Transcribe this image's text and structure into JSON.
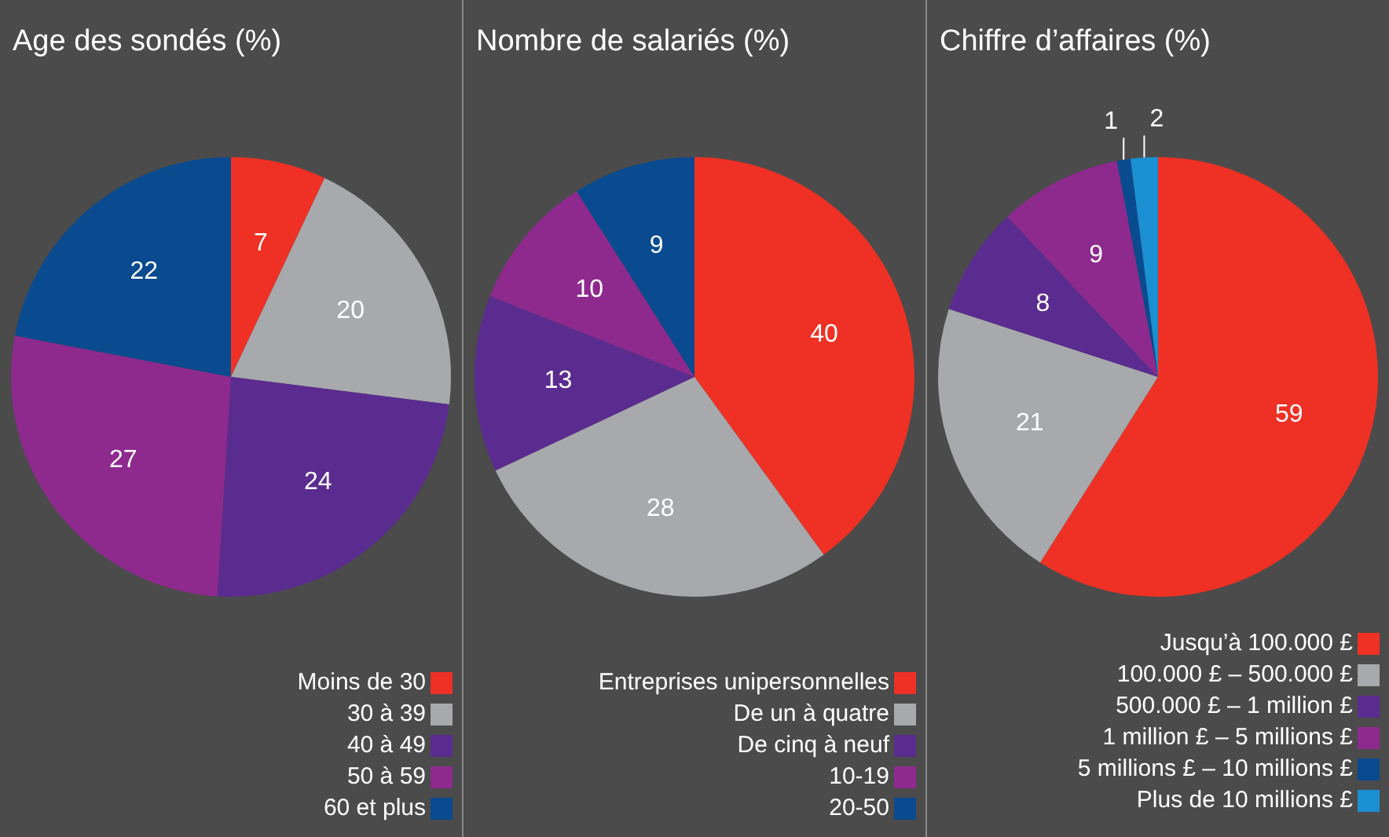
{
  "chart_data": [
    {
      "type": "pie",
      "title": "Age des sondés (%)",
      "categories": [
        "Moins de 30",
        "30 à 39",
        "40 à 49",
        "50 à 59",
        "60 et plus"
      ],
      "values": [
        7,
        20,
        24,
        27,
        22
      ],
      "colors": [
        "#ee3124",
        "#a7a9ac",
        "#5b2c8f",
        "#8e2a8e",
        "#0a4a8f"
      ],
      "data_labels": true,
      "legend": "bottom right"
    },
    {
      "type": "pie",
      "title": "Nombre de salariés (%)",
      "categories": [
        "Entreprises unipersonnelles",
        "De un à quatre",
        "De cinq à neuf",
        "10-19",
        "20-50"
      ],
      "values": [
        40,
        28,
        13,
        10,
        9
      ],
      "colors": [
        "#ee3124",
        "#a7a9ac",
        "#5b2c8f",
        "#8e2a8e",
        "#0a4a8f"
      ],
      "data_labels": true,
      "legend": "bottom right"
    },
    {
      "type": "pie",
      "title": "Chiffre d’affaires (%)",
      "categories": [
        "Jusqu’à 100.000 £",
        "100.000 £ – 500.000 £",
        "500.000 £ – 1 million £",
        "1 million £ – 5 millions £",
        "5 millions £ – 10 millions £",
        "Plus de 10 millions £"
      ],
      "values": [
        59,
        21,
        8,
        9,
        1,
        2
      ],
      "colors": [
        "#ee3124",
        "#a7a9ac",
        "#5b2c8f",
        "#8e2a8e",
        "#0a4a8f",
        "#1a8fd1"
      ],
      "data_labels": true,
      "legend": "bottom right"
    }
  ]
}
